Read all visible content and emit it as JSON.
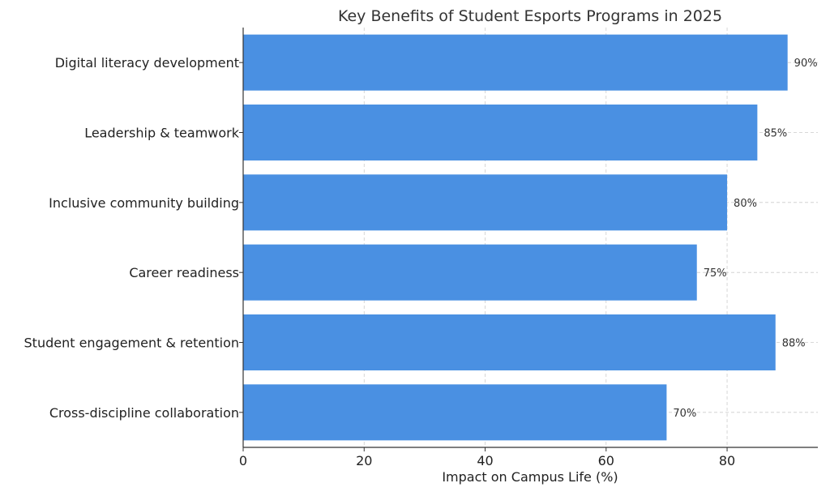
{
  "chart_data": {
    "type": "bar",
    "orientation": "horizontal",
    "title": "Key Benefits of Student Esports Programs in 2025",
    "xlabel": "Impact on Campus Life (%)",
    "ylabel": "",
    "xlim": [
      0,
      95
    ],
    "xticks": [
      0,
      20,
      40,
      60,
      80
    ],
    "grid": true,
    "categories": [
      "Digital literacy development",
      "Leadership & teamwork",
      "Inclusive community building",
      "Career readiness",
      "Student engagement & retention",
      "Cross-discipline collaboration"
    ],
    "values": [
      90,
      85,
      80,
      75,
      88,
      70
    ],
    "value_labels": [
      "90%",
      "85%",
      "80%",
      "75%",
      "88%",
      "70%"
    ],
    "bar_color": "#4a90e2"
  }
}
